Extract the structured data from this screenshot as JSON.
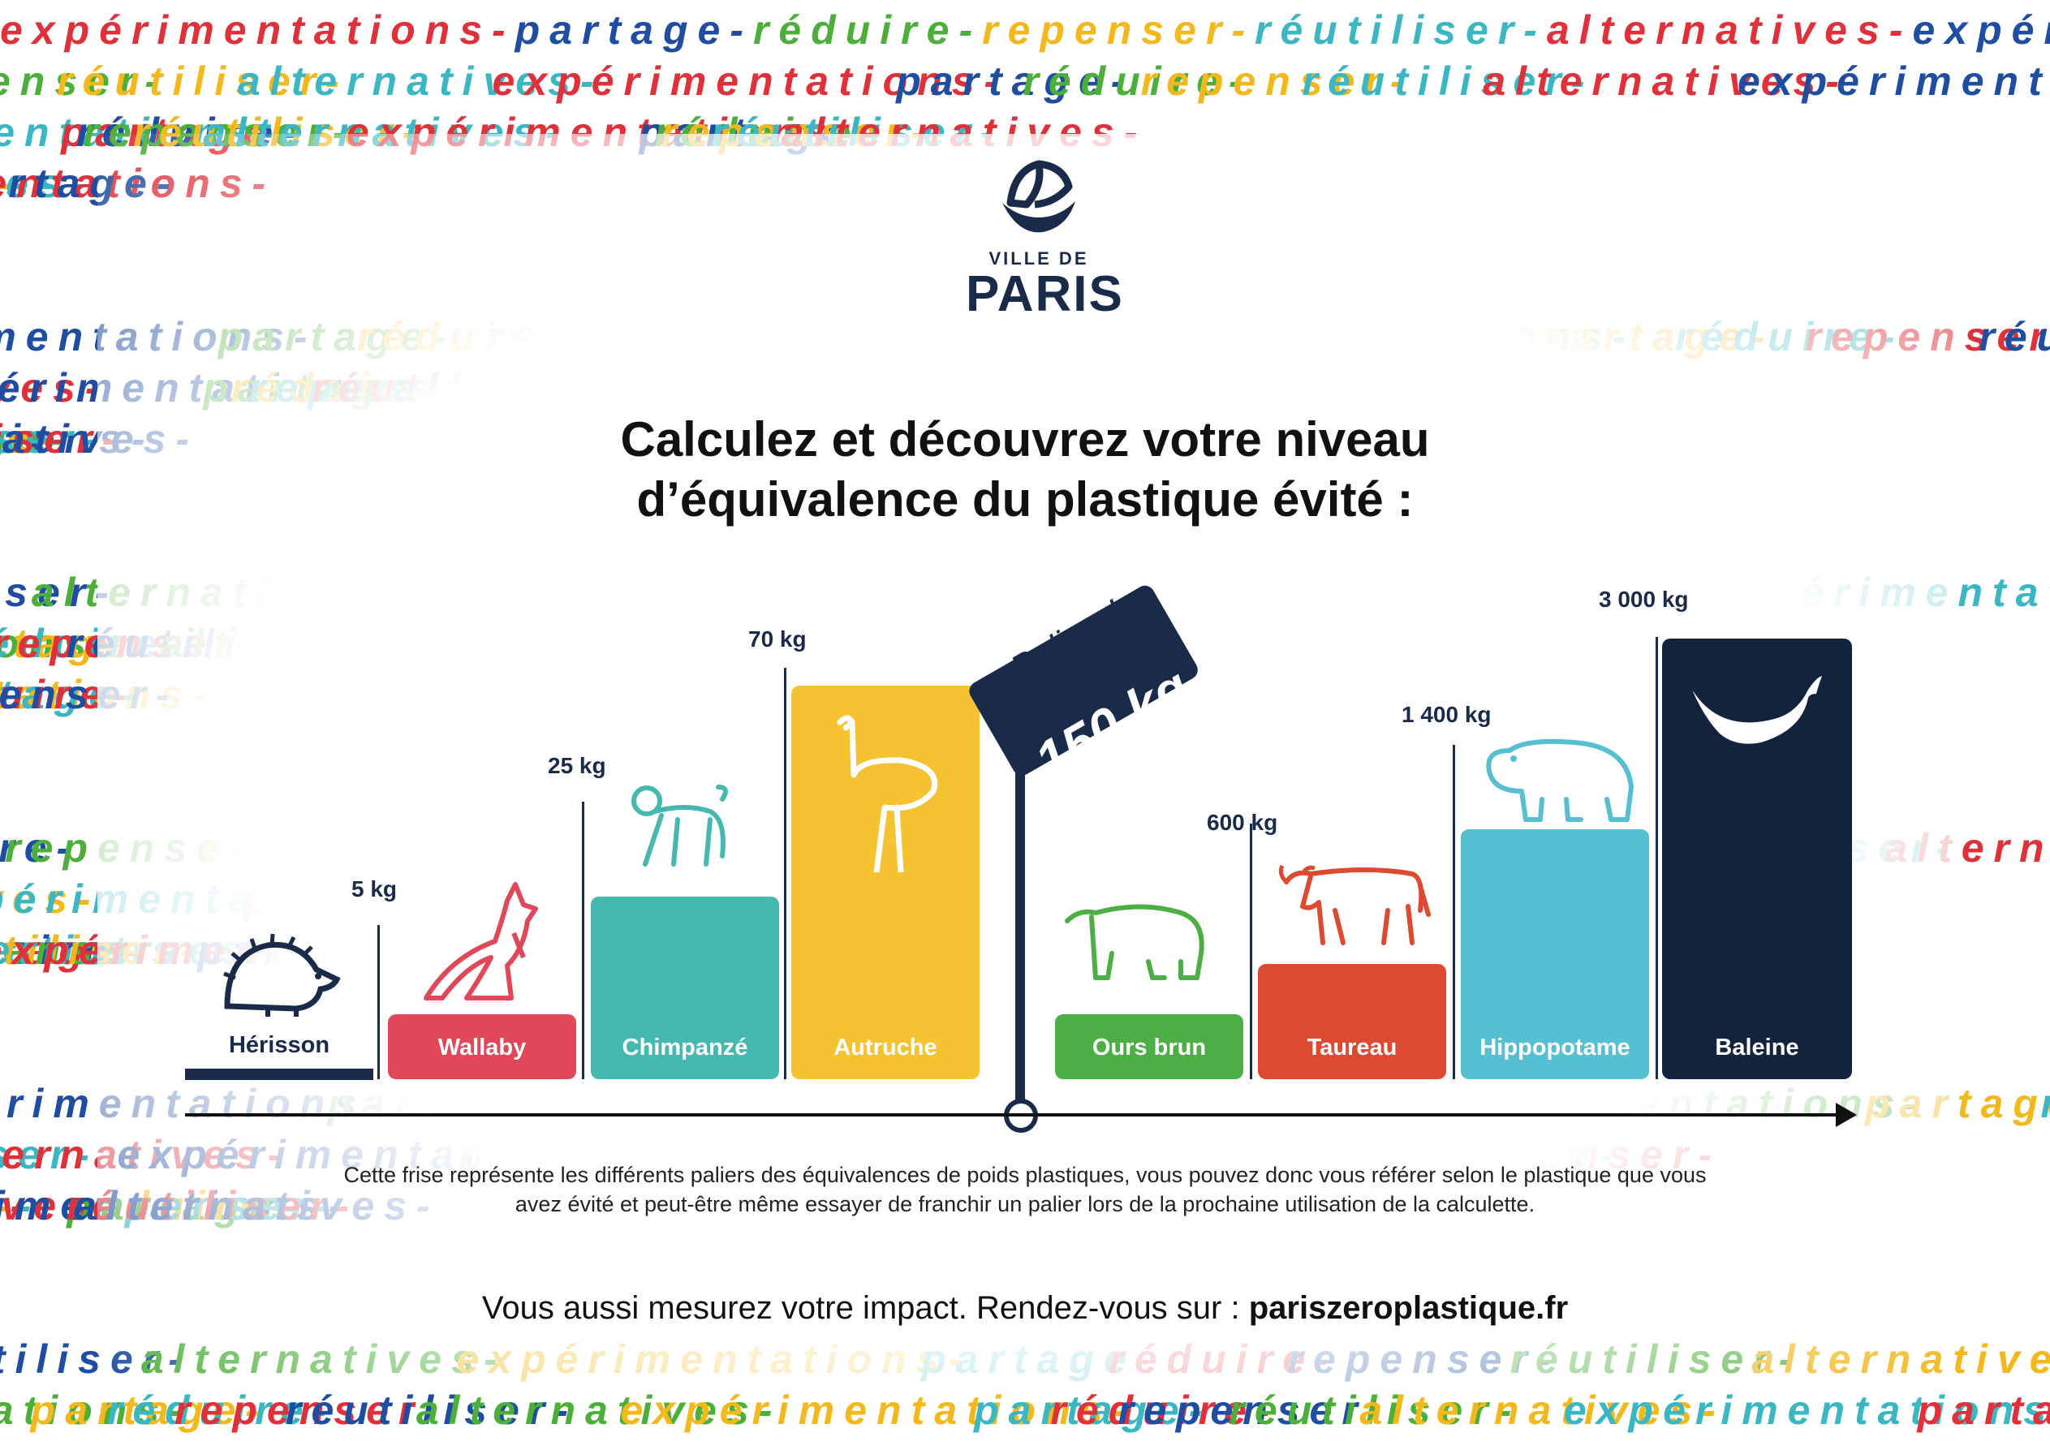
{
  "background": {
    "words": [
      "expérimentations",
      "partage",
      "réduire",
      "repenser",
      "réutiliser",
      "alternatives"
    ],
    "colors": [
      "#e0303a",
      "#1f4da1",
      "#4caf3a",
      "#f2b81c",
      "#3ab7c3"
    ]
  },
  "logo": {
    "ville_de": "VILLE DE",
    "paris": "PARIS"
  },
  "title": {
    "line1": "Calculez et découvrez votre niveau",
    "line2": "d’équivalence du plastique évité :"
  },
  "flag": {
    "top": "Palier des",
    "value": "150 kg",
    "color": "#1a2b4a"
  },
  "steps": [
    {
      "name": "Hérisson",
      "weight": "",
      "color": "#1a2b4a",
      "icon": "hedgehog-icon"
    },
    {
      "name": "Wallaby",
      "weight": "5 kg",
      "color": "#e0485a",
      "icon": "kangaroo-icon"
    },
    {
      "name": "Chimpanzé",
      "weight": "25 kg",
      "color": "#45b8b0",
      "icon": "monkey-icon"
    },
    {
      "name": "Autruche",
      "weight": "70 kg",
      "color": "#f5c331",
      "icon": "ostrich-icon"
    },
    {
      "name": "Ours brun",
      "weight": "",
      "color": "#4caf45",
      "icon": "bear-icon"
    },
    {
      "name": "Taureau",
      "weight": "600 kg",
      "color": "#dd4a30",
      "icon": "bull-icon"
    },
    {
      "name": "Hippopotame",
      "weight": "1 400 kg",
      "color": "#56bfd2",
      "icon": "hippo-icon"
    },
    {
      "name": "Baleine",
      "weight": "3 000 kg",
      "color": "#14233d",
      "icon": "whale-icon"
    }
  ],
  "description": {
    "line1": "Cette frise représente les différents paliers des équivalences de poids plastiques, vous pouvez donc vous référer selon le plastique que vous",
    "line2": "avez évité et peut-être même essayer de franchir un palier lors de la prochaine utilisation de la calculette."
  },
  "cta": {
    "text": "Vous aussi mesurez votre impact. Rendez-vous sur : ",
    "url": "pariszeroplastique.fr"
  }
}
